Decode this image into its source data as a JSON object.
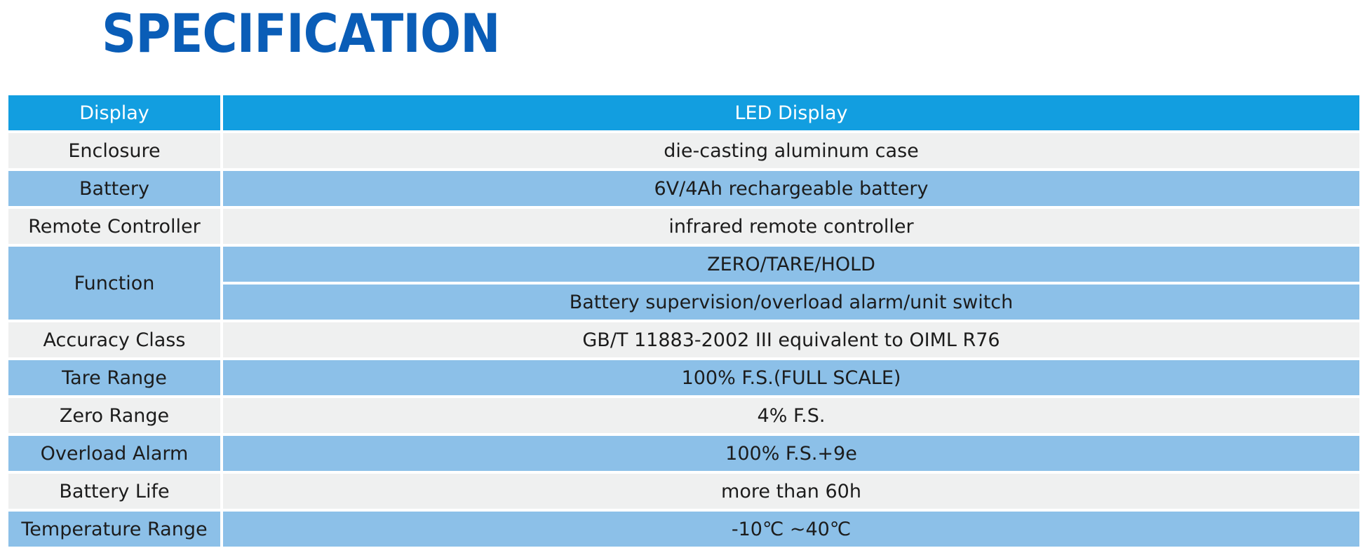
{
  "page": {
    "title": "SPECIFICATION"
  },
  "colors": {
    "title": "#0a5db7",
    "header_row": "#129ee0",
    "light_row": "#eff0f0",
    "blue_row": "#8cc0e8"
  },
  "spec_table": {
    "header": {
      "label": "Display",
      "value": "LED Display"
    },
    "rows": [
      {
        "label": "Enclosure",
        "value": "die-casting aluminum case"
      },
      {
        "label": "Battery",
        "value": "6V/4Ah rechargeable battery"
      },
      {
        "label": "Remote Controller",
        "value": "infrared remote controller"
      },
      {
        "label": "Function",
        "values": [
          "ZERO/TARE/HOLD",
          "Battery supervision/overload alarm/unit switch"
        ]
      },
      {
        "label": "Accuracy Class",
        "value": "GB/T 11883-2002 III equivalent to OIML R76"
      },
      {
        "label": "Tare Range",
        "value": "100% F.S.(FULL SCALE)"
      },
      {
        "label": "Zero Range",
        "value": "4% F.S."
      },
      {
        "label": "Overload Alarm",
        "value": "100% F.S.+9e"
      },
      {
        "label": "Battery Life",
        "value": "more than 60h"
      },
      {
        "label": "Temperature Range",
        "value": "-10℃ ~40℃"
      }
    ]
  }
}
